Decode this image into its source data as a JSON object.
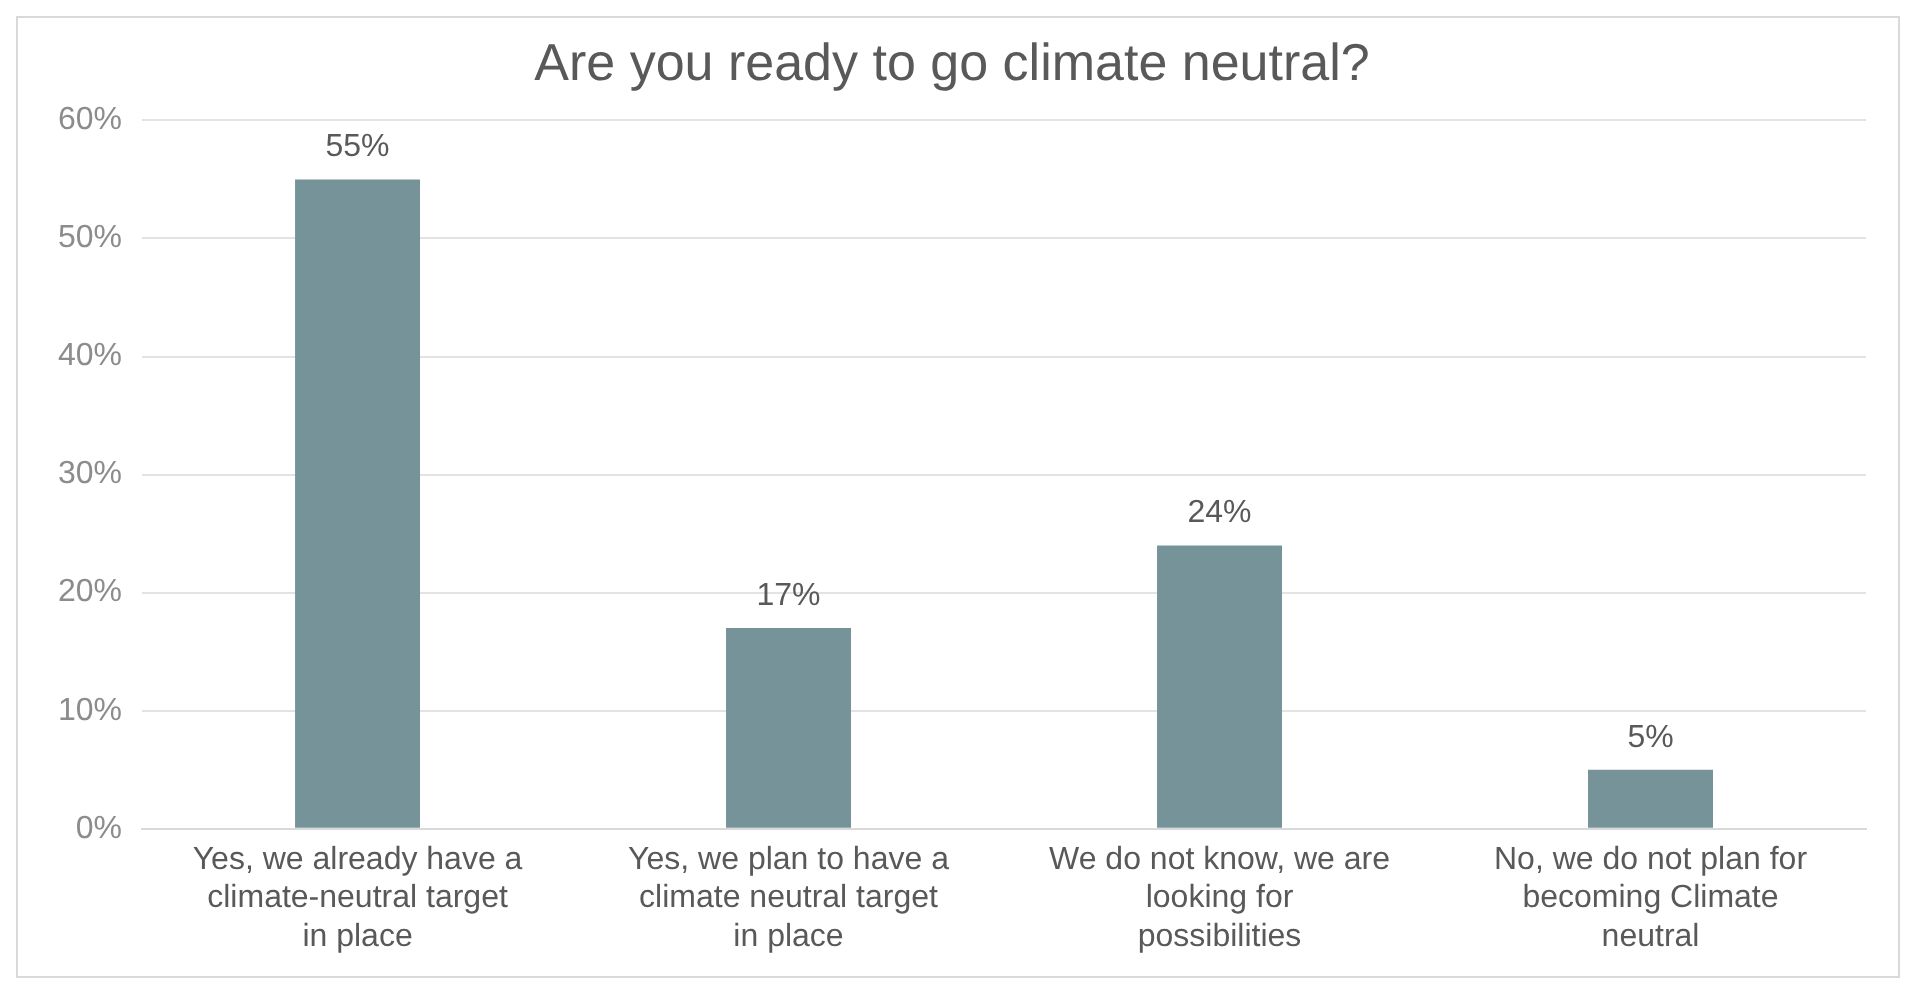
{
  "chart_data": {
    "type": "bar",
    "title": "Are you ready to go climate neutral?",
    "categories": [
      "Yes, we already have a climate-neutral target in place",
      "Yes, we plan to have a climate neutral target in place",
      "We do not know, we are looking for possibilities",
      "No, we do not plan for becoming Climate neutral"
    ],
    "values": [
      55,
      17,
      24,
      5
    ],
    "color": "#77939a",
    "value_labels": [
      "55%",
      "17%",
      "24%",
      "5%"
    ],
    "ylim": [
      0,
      60
    ],
    "yticks": [
      {
        "value": 0,
        "label": "0%"
      },
      {
        "value": 10,
        "label": "10%"
      },
      {
        "value": 20,
        "label": "20%"
      },
      {
        "value": 30,
        "label": "30%"
      },
      {
        "value": 40,
        "label": "40%"
      },
      {
        "value": 50,
        "label": "50%"
      },
      {
        "value": 60,
        "label": "60%"
      }
    ],
    "grid": "y"
  }
}
